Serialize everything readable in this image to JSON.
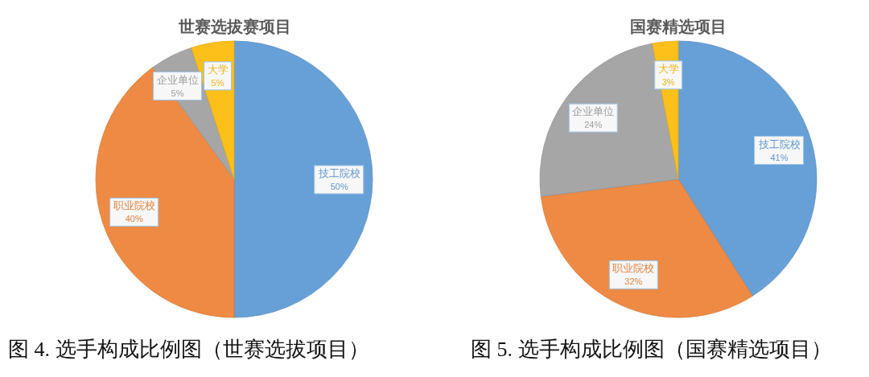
{
  "chart_data": [
    {
      "type": "pie",
      "title": "世赛选拔赛项目",
      "categories": [
        "技工院校",
        "职业院校",
        "企业单位",
        "大学"
      ],
      "values": [
        50,
        40,
        5,
        5
      ],
      "colors": [
        "#67a0d6",
        "#ee8a44",
        "#a6a6a6",
        "#fdbf1a"
      ],
      "value_labels": [
        "50%",
        "40%",
        "5%",
        "5%"
      ],
      "annotations": [
        "图 4. 选手构成比例图（世赛选拔项目）"
      ]
    },
    {
      "type": "pie",
      "title": "国赛精选项目",
      "categories": [
        "技工院校",
        "职业院校",
        "企业单位",
        "大学"
      ],
      "values": [
        41,
        32,
        24,
        3
      ],
      "colors": [
        "#67a0d6",
        "#ee8a44",
        "#a6a6a6",
        "#fdbf1a"
      ],
      "value_labels": [
        "41%",
        "32%",
        "24%",
        "3%"
      ],
      "annotations": [
        "图 5. 选手构成比例图（国赛精选项目）"
      ]
    }
  ]
}
